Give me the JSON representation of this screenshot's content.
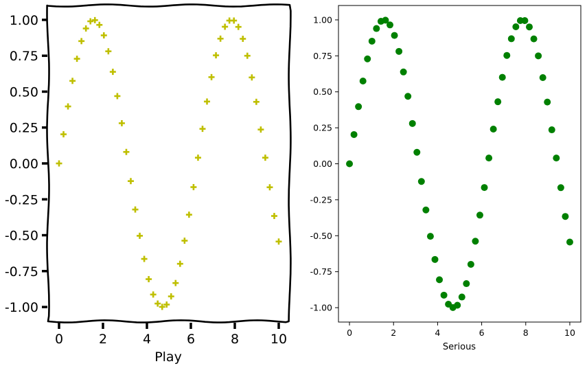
{
  "chart_data": [
    {
      "type": "scatter",
      "style": "xkcd",
      "title": "",
      "xlabel": "Play",
      "ylabel": "",
      "xlim": [
        -0.5,
        10.5
      ],
      "ylim": [
        -1.1,
        1.1
      ],
      "xticks": [
        "0",
        "2",
        "4",
        "6",
        "8",
        "10"
      ],
      "yticks": [
        "1.00",
        "0.75",
        "0.50",
        "0.25",
        "0.00",
        "-0.25",
        "-0.50",
        "-0.75",
        "-1.00"
      ],
      "marker": "plus",
      "color": "#bfbf00",
      "series": [
        {
          "name": "sin(x)",
          "x": [
            0,
            0.204,
            0.408,
            0.612,
            0.816,
            1.02,
            1.224,
            1.429,
            1.633,
            1.837,
            2.041,
            2.245,
            2.449,
            2.653,
            2.857,
            3.061,
            3.265,
            3.469,
            3.673,
            3.878,
            4.082,
            4.286,
            4.49,
            4.694,
            4.898,
            5.102,
            5.306,
            5.51,
            5.714,
            5.918,
            6.122,
            6.327,
            6.531,
            6.735,
            6.939,
            7.143,
            7.347,
            7.551,
            7.755,
            7.959,
            8.163,
            8.367,
            8.571,
            8.776,
            8.98,
            9.184,
            9.388,
            9.592,
            9.796,
            10
          ],
          "y": [
            0,
            0.203,
            0.397,
            0.575,
            0.729,
            0.852,
            0.94,
            0.99,
            0.998,
            0.965,
            0.892,
            0.781,
            0.638,
            0.469,
            0.28,
            0.08,
            -0.123,
            -0.321,
            -0.504,
            -0.665,
            -0.806,
            -0.913,
            -0.976,
            -0.999,
            -0.983,
            -0.926,
            -0.833,
            -0.699,
            -0.538,
            -0.357,
            -0.165,
            0.04,
            0.241,
            0.431,
            0.601,
            0.753,
            0.869,
            0.952,
            0.995,
            0.995,
            0.951,
            0.868,
            0.75,
            0.599,
            0.429,
            0.236,
            0.04,
            -0.166,
            -0.366,
            -0.544
          ]
        }
      ]
    },
    {
      "type": "scatter",
      "style": "default",
      "title": "",
      "xlabel": "Serious",
      "ylabel": "",
      "xlim": [
        -0.5,
        10.5
      ],
      "ylim": [
        -1.1,
        1.1
      ],
      "xticks": [
        "0",
        "2",
        "4",
        "6",
        "8",
        "10"
      ],
      "yticks": [
        "1.00",
        "0.75",
        "0.50",
        "0.25",
        "0.00",
        "-0.25",
        "-0.50",
        "-0.75",
        "-1.00"
      ],
      "marker": "circle",
      "color": "#008000",
      "series": [
        {
          "name": "sin(x)",
          "x": [
            0,
            0.204,
            0.408,
            0.612,
            0.816,
            1.02,
            1.224,
            1.429,
            1.633,
            1.837,
            2.041,
            2.245,
            2.449,
            2.653,
            2.857,
            3.061,
            3.265,
            3.469,
            3.673,
            3.878,
            4.082,
            4.286,
            4.49,
            4.694,
            4.898,
            5.102,
            5.306,
            5.51,
            5.714,
            5.918,
            6.122,
            6.327,
            6.531,
            6.735,
            6.939,
            7.143,
            7.347,
            7.551,
            7.755,
            7.959,
            8.163,
            8.367,
            8.571,
            8.776,
            8.98,
            9.184,
            9.388,
            9.592,
            9.796,
            10
          ],
          "y": [
            0,
            0.203,
            0.397,
            0.575,
            0.729,
            0.852,
            0.94,
            0.99,
            0.998,
            0.965,
            0.892,
            0.781,
            0.638,
            0.469,
            0.28,
            0.08,
            -0.123,
            -0.321,
            -0.504,
            -0.665,
            -0.806,
            -0.913,
            -0.976,
            -0.999,
            -0.983,
            -0.926,
            -0.833,
            -0.699,
            -0.538,
            -0.357,
            -0.165,
            0.04,
            0.241,
            0.431,
            0.601,
            0.753,
            0.869,
            0.952,
            0.995,
            0.995,
            0.951,
            0.868,
            0.75,
            0.599,
            0.429,
            0.236,
            0.04,
            -0.166,
            -0.366,
            -0.544
          ]
        }
      ]
    }
  ]
}
